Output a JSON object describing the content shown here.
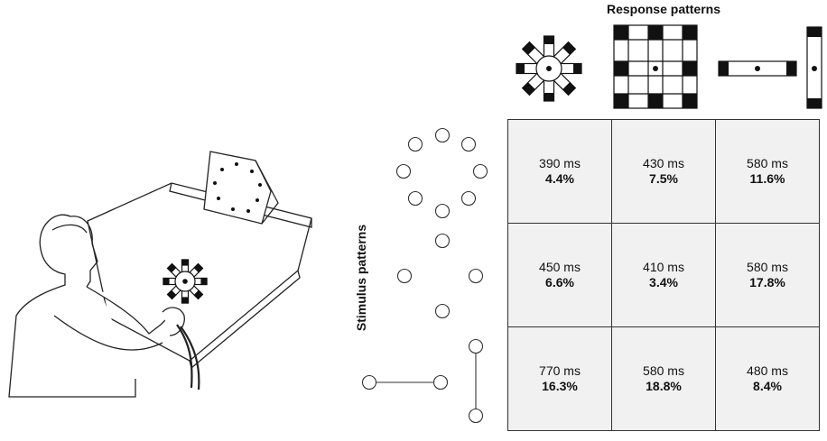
{
  "titles": {
    "response": "Response patterns",
    "stimulus": "Stimulus patterns"
  },
  "grid": {
    "rows": [
      [
        {
          "ms": "390 ms",
          "pct": "4.4%"
        },
        {
          "ms": "430 ms",
          "pct": "7.5%"
        },
        {
          "ms": "580 ms",
          "pct": "11.6%"
        }
      ],
      [
        {
          "ms": "450 ms",
          "pct": "6.6%"
        },
        {
          "ms": "410 ms",
          "pct": "3.4%"
        },
        {
          "ms": "580 ms",
          "pct": "17.8%"
        }
      ],
      [
        {
          "ms": "770 ms",
          "pct": "16.3%"
        },
        {
          "ms": "580 ms",
          "pct": "18.8%"
        },
        {
          "ms": "480 ms",
          "pct": "8.4%"
        }
      ]
    ]
  },
  "icons": {
    "illustration": "person-at-tilted-board-illustration",
    "response_patterns": [
      "radial-arms-icon",
      "grid-pattern-icon",
      "horizontal-bar-icon",
      "vertical-bar-icon"
    ],
    "stimulus_patterns": [
      "circle-of-lights-icon",
      "diamond-of-lights-icon",
      "cross-of-lights-icon"
    ]
  }
}
